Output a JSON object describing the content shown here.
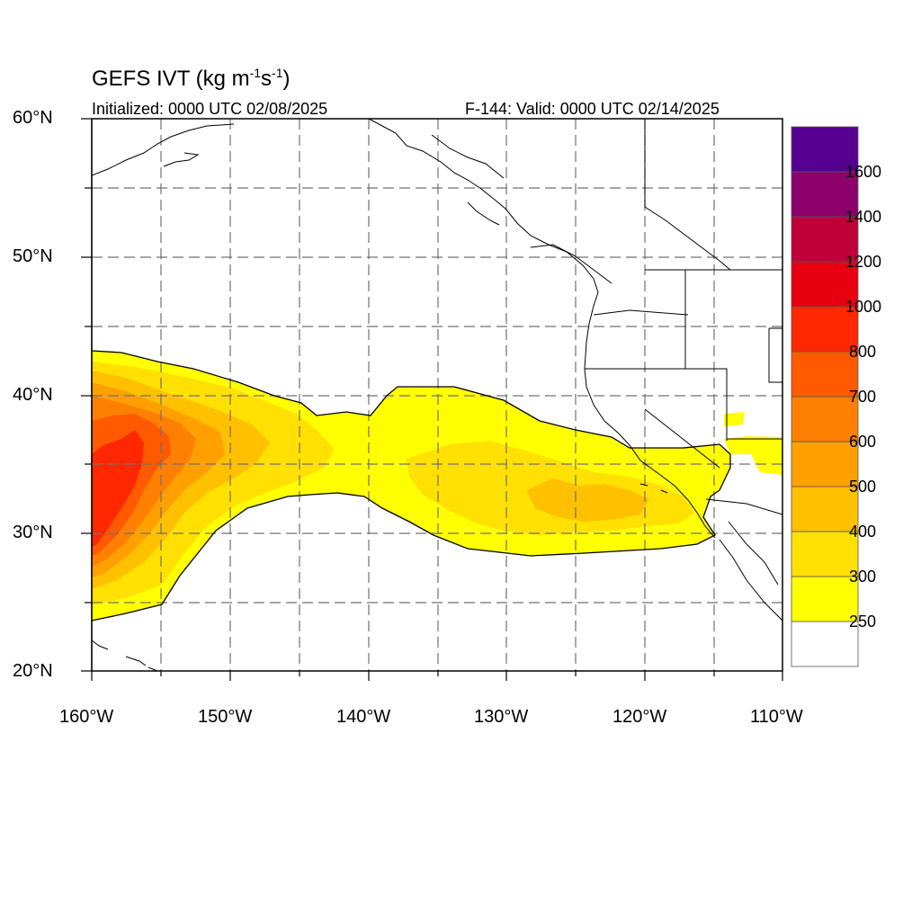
{
  "title": {
    "prefix": "GEFS IVT (kg m",
    "exp1": "-1",
    "mid": "s",
    "exp2": "-1",
    "suffix": ")"
  },
  "subtitle_left": "Initialized: 0000 UTC 02/08/2025",
  "subtitle_right": "F-144: Valid: 0000 UTC 02/14/2025",
  "axes": {
    "lat_labels": [
      "60°N",
      "50°N",
      "40°N",
      "30°N",
      "20°N"
    ],
    "lon_labels": [
      "160°W",
      "150°W",
      "140°W",
      "130°W",
      "120°W",
      "110°W"
    ],
    "lon_range": [
      -160,
      -110
    ],
    "lat_range": [
      20,
      60
    ],
    "grid": "dashed every 5°"
  },
  "colorbar": {
    "labels": [
      "1600",
      "1400",
      "1200",
      "1000",
      "800",
      "700",
      "600",
      "500",
      "400",
      "300",
      "250"
    ],
    "levels": [
      250,
      300,
      400,
      500,
      600,
      700,
      800,
      1000,
      1200,
      1400,
      1600
    ],
    "colors": [
      "#ffffff",
      "#ffff00",
      "#ffe000",
      "#ffc000",
      "#ffa000",
      "#ff8000",
      "#ff5a00",
      "#ff2800",
      "#e80010",
      "#c0003a",
      "#8b006a",
      "#550090"
    ]
  }
}
